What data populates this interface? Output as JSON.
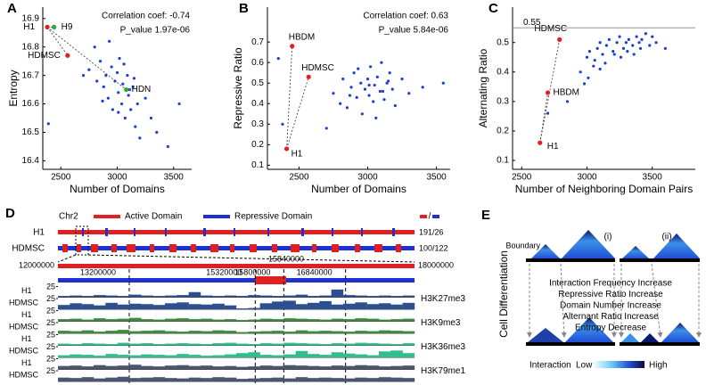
{
  "chart_data": [
    {
      "type": "scatter",
      "panel_label": "A",
      "xlabel": "Number of Domains",
      "ylabel": "Entropy",
      "annotations": [
        "Correlation coef: -0.74",
        "P_value 1.97e-06"
      ],
      "color": "#1a3fd6",
      "xlim": [
        2340,
        3660
      ],
      "ylim": [
        16.37,
        16.94
      ],
      "xticks": [
        2500,
        3000,
        3500
      ],
      "yticks": [
        16.4,
        16.5,
        16.6,
        16.7,
        16.8,
        16.9
      ],
      "x": [
        2750,
        2800,
        2820,
        2850,
        2880,
        2900,
        2920,
        2950,
        2960,
        2980,
        3000,
        3010,
        3020,
        3040,
        3050,
        3070,
        3090,
        3100,
        3120,
        3140,
        3160,
        3180,
        3200,
        3250,
        3300,
        3350,
        3450,
        3550,
        2390,
        2700,
        2930,
        3060,
        3150,
        2870,
        3010,
        3110
      ],
      "y": [
        16.72,
        16.8,
        16.68,
        16.75,
        16.66,
        16.7,
        16.62,
        16.73,
        16.58,
        16.68,
        16.71,
        16.64,
        16.76,
        16.6,
        16.67,
        16.55,
        16.7,
        16.63,
        16.58,
        16.66,
        16.52,
        16.6,
        16.48,
        16.62,
        16.55,
        16.5,
        16.45,
        16.6,
        16.53,
        16.7,
        16.82,
        16.74,
        16.69,
        16.61,
        16.57,
        16.65
      ],
      "highlights": [
        {
          "label": "H1",
          "x": 2380,
          "y": 16.87,
          "color": "#e02020"
        },
        {
          "label": "H9",
          "x": 2440,
          "y": 16.87,
          "color": "#2fa83a"
        },
        {
          "label": "HDMSC",
          "x": 2560,
          "y": 16.77,
          "color": "#e02020"
        },
        {
          "label": "HDN",
          "x": 3080,
          "y": 16.65,
          "color": "#2fa83a"
        }
      ]
    },
    {
      "type": "scatter",
      "panel_label": "B",
      "xlabel": "Number of Domains",
      "ylabel": "Repressive Ratio",
      "annotations": [
        "Correlation coef: 0.63",
        "P_value 5.84e-06"
      ],
      "color": "#1a3fd6",
      "xlim": [
        2270,
        3600
      ],
      "ylim": [
        0.08,
        0.87
      ],
      "xticks": [
        2500,
        3000,
        3500
      ],
      "yticks": [
        0.1,
        0.2,
        0.3,
        0.4,
        0.5,
        0.6,
        0.7
      ],
      "x": [
        2750,
        2800,
        2820,
        2850,
        2880,
        2900,
        2920,
        2950,
        2960,
        2980,
        3000,
        3010,
        3020,
        3040,
        3050,
        3070,
        3090,
        3100,
        3120,
        3140,
        3160,
        3180,
        3200,
        3250,
        3300,
        3400,
        3550,
        2350,
        2380,
        2700,
        2930,
        3060,
        3150,
        2870,
        3010,
        3110
      ],
      "y": [
        0.45,
        0.4,
        0.52,
        0.38,
        0.48,
        0.55,
        0.43,
        0.5,
        0.35,
        0.47,
        0.52,
        0.44,
        0.58,
        0.41,
        0.49,
        0.53,
        0.46,
        0.6,
        0.42,
        0.5,
        0.55,
        0.47,
        0.39,
        0.52,
        0.45,
        0.48,
        0.5,
        0.62,
        0.3,
        0.28,
        0.57,
        0.33,
        0.51,
        0.44,
        0.49,
        0.46
      ],
      "highlights": [
        {
          "label": "H1",
          "x": 2410,
          "y": 0.18,
          "color": "#e02020"
        },
        {
          "label": "HBDM",
          "x": 2450,
          "y": 0.68,
          "color": "#e02020"
        },
        {
          "label": "HDMSC",
          "x": 2570,
          "y": 0.53,
          "color": "#e02020"
        }
      ]
    },
    {
      "type": "scatter",
      "panel_label": "C",
      "xlabel": "Number of Neighboring Domain Pairs",
      "ylabel": "Alternating Ratio",
      "annotations": [],
      "reference_line": 0.55,
      "color": "#1a3fd6",
      "xlim": [
        2430,
        3830
      ],
      "ylim": [
        0.07,
        0.62
      ],
      "xticks": [
        2500,
        3000,
        3500
      ],
      "yticks": [
        0.1,
        0.2,
        0.3,
        0.4,
        0.5
      ],
      "x": [
        2950,
        3000,
        3020,
        3050,
        3080,
        3100,
        3120,
        3150,
        3170,
        3200,
        3230,
        3250,
        3280,
        3300,
        3320,
        3350,
        3380,
        3400,
        3420,
        3450,
        3480,
        3500,
        3530,
        3060,
        3140,
        3210,
        3310,
        3410,
        3010,
        2980,
        3100,
        3260,
        3360,
        3600,
        2850,
        2700
      ],
      "y": [
        0.4,
        0.45,
        0.47,
        0.42,
        0.48,
        0.5,
        0.46,
        0.49,
        0.51,
        0.47,
        0.5,
        0.52,
        0.48,
        0.5,
        0.51,
        0.49,
        0.52,
        0.5,
        0.51,
        0.53,
        0.49,
        0.52,
        0.5,
        0.44,
        0.43,
        0.46,
        0.47,
        0.48,
        0.38,
        0.36,
        0.41,
        0.45,
        0.46,
        0.48,
        0.3,
        0.26
      ],
      "highlights": [
        {
          "label": "H1",
          "x": 2640,
          "y": 0.16,
          "color": "#e02020"
        },
        {
          "label": "HBDM",
          "x": 2700,
          "y": 0.33,
          "color": "#e02020"
        },
        {
          "label": "HDMSC",
          "x": 2790,
          "y": 0.51,
          "color": "#e02020"
        }
      ]
    }
  ],
  "genome_browser": {
    "panel_label": "D",
    "chromosome": "Chr2",
    "legend": [
      "Active Domain",
      "Repressive Domain"
    ],
    "legend_sep": "/",
    "samples": [
      {
        "label": "H1",
        "counts": "191/26"
      },
      {
        "label": "HDMSC",
        "counts": "100/122"
      }
    ],
    "region": [
      12000000,
      18000000
    ],
    "highlight": [
      15320000,
      15840000
    ],
    "positions": [
      13200000,
      15320000,
      15800000,
      16840000
    ],
    "ylim": [
      0,
      25
    ],
    "yticks": [
      25
    ],
    "tracks": [
      {
        "mark": "H3K27me3",
        "color": "#2b4f8f",
        "rows": [
          {
            "label": "H1",
            "values": [
              3,
              4,
              3,
              5,
              4,
              3,
              6,
              4,
              3,
              4,
              5,
              12,
              4,
              3,
              4,
              3,
              5,
              4,
              3,
              4,
              6,
              3,
              4,
              18,
              5,
              4,
              3,
              4,
              3,
              4
            ]
          },
          {
            "label": "HDMSC",
            "values": [
              10,
              14,
              12,
              9,
              15,
              11,
              13,
              12,
              10,
              14,
              16,
              12,
              11,
              13,
              9,
              2,
              3,
              14,
              18,
              20,
              12,
              15,
              19,
              11,
              13,
              16,
              12,
              14,
              11,
              15
            ]
          }
        ]
      },
      {
        "mark": "H3K9me3",
        "color": "#3e8a3e",
        "rows": [
          {
            "label": "H1",
            "values": [
              5,
              6,
              4,
              7,
              5,
              6,
              8,
              5,
              4,
              6,
              7,
              5,
              6,
              4,
              5,
              3,
              4,
              6,
              5,
              7,
              6,
              5,
              4,
              6,
              5,
              7,
              6,
              4,
              5,
              6
            ]
          },
          {
            "label": "HDMSC",
            "values": [
              6,
              5,
              7,
              4,
              6,
              8,
              5,
              6,
              7,
              5,
              4,
              6,
              5,
              7,
              6,
              3,
              4,
              5,
              6,
              4,
              7,
              5,
              6,
              5,
              4,
              6,
              5,
              7,
              6,
              5
            ]
          }
        ]
      },
      {
        "mark": "H3K36me3",
        "color": "#2fbf8f",
        "rows": [
          {
            "label": "H1",
            "values": [
              4,
              3,
              5,
              4,
              3,
              6,
              4,
              5,
              3,
              4,
              5,
              4,
              3,
              5,
              6,
              4,
              3,
              5,
              4,
              6,
              5,
              4,
              3,
              5,
              4,
              6,
              5,
              4,
              3,
              5
            ]
          },
          {
            "label": "HDMSC",
            "values": [
              5,
              7,
              6,
              4,
              8,
              6,
              5,
              7,
              6,
              5,
              8,
              6,
              4,
              5,
              7,
              10,
              12,
              6,
              5,
              7,
              15,
              8,
              6,
              12,
              9,
              7,
              5,
              14,
              16,
              10
            ]
          }
        ]
      },
      {
        "mark": "H3K79me1",
        "color": "#4a5570",
        "rows": [
          {
            "label": "H1",
            "values": [
              8,
              9,
              7,
              10,
              8,
              9,
              11,
              8,
              7,
              9,
              10,
              8,
              9,
              7,
              8,
              6,
              7,
              9,
              8,
              10,
              9,
              8,
              7,
              9,
              8,
              10,
              9,
              7,
              8,
              9
            ]
          },
          {
            "label": "HDMSC",
            "values": [
              9,
              8,
              10,
              7,
              9,
              11,
              8,
              9,
              10,
              8,
              7,
              9,
              8,
              10,
              9,
              6,
              7,
              8,
              9,
              7,
              10,
              8,
              9,
              8,
              7,
              9,
              8,
              10,
              9,
              8
            ]
          }
        ]
      }
    ]
  },
  "diagram": {
    "panel_label": "E",
    "axis_label": "Cell Differentiation",
    "boundary": "Boundary",
    "cases": [
      "(i)",
      "(ii)"
    ],
    "changes": [
      "Interaction Frequency Increase",
      "Repressive Ratio Increase",
      "Domain Number Increase",
      "Alternant Ratio Increase",
      "Entropy Decrease"
    ],
    "scale": {
      "title": "Interaction",
      "low": "Low",
      "high": "High"
    }
  }
}
